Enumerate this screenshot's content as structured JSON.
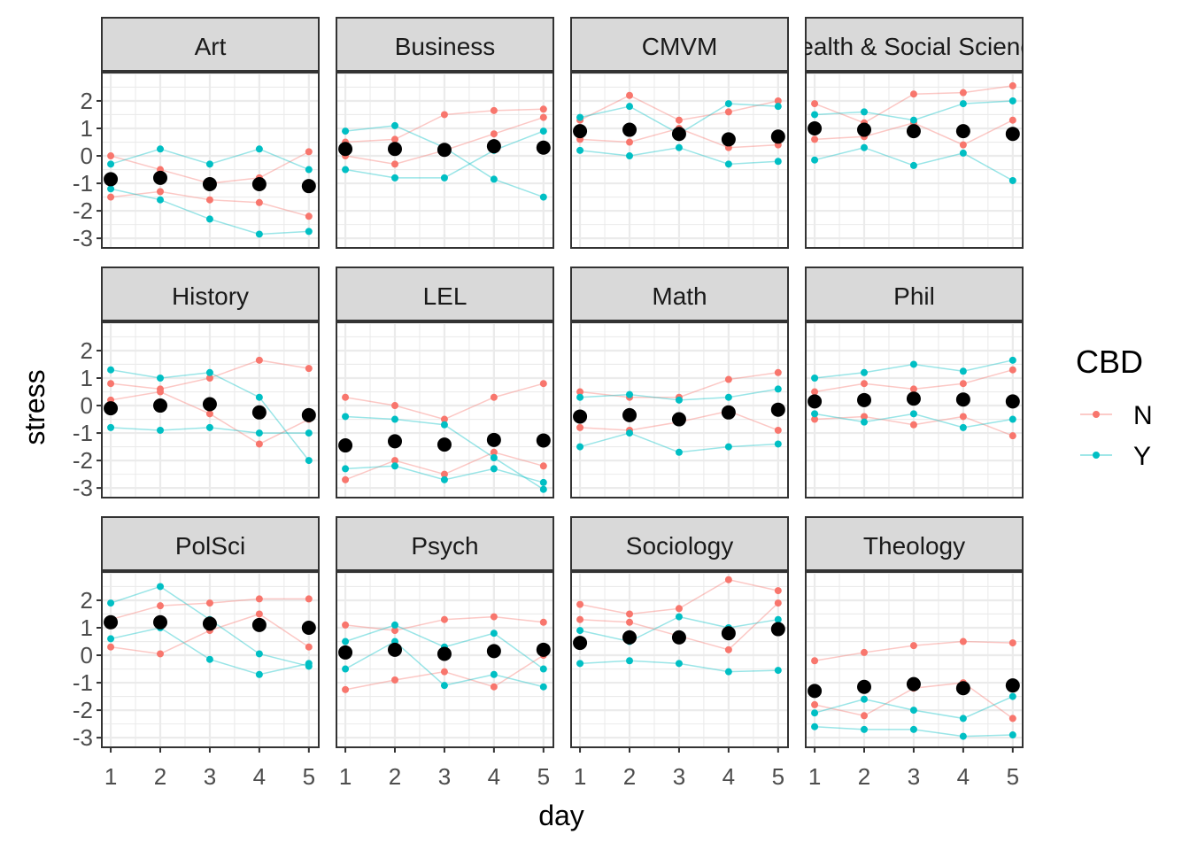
{
  "chart_data": {
    "type": "line",
    "xlabel": "day",
    "ylabel": "stress",
    "x": [
      1,
      2,
      3,
      4,
      5
    ],
    "xticks": [
      "1",
      "2",
      "3",
      "4",
      "5"
    ],
    "yticks": [
      "2",
      "1",
      "0",
      "-1",
      "-2",
      "-3"
    ],
    "ytick_values": [
      2,
      1,
      0,
      -1,
      -2,
      -3
    ],
    "ylim": [
      -3.35,
      3.03
    ],
    "xlim": [
      0.82,
      5.2
    ],
    "grid": true,
    "legend": {
      "title": "CBD",
      "position": "right",
      "entries": [
        {
          "label": "N",
          "color": "#F8766D"
        },
        {
          "label": "Y",
          "color": "#00BFC4"
        }
      ]
    },
    "mean_color": "#000000",
    "facets": [
      {
        "label": "Art",
        "mean": [
          -0.85,
          -0.8,
          -1.03,
          -1.03,
          -1.1
        ],
        "lines": [
          {
            "cbd": "N",
            "y": [
              0,
              -0.5,
              -1,
              -0.8,
              0.15
            ]
          },
          {
            "cbd": "N",
            "y": [
              -1.5,
              -1.3,
              -1.6,
              -1.7,
              -2.2
            ]
          },
          {
            "cbd": "Y",
            "y": [
              -0.3,
              0.25,
              -0.3,
              0.25,
              -0.5
            ]
          },
          {
            "cbd": "Y",
            "y": [
              -1.2,
              -1.6,
              -2.3,
              -2.85,
              -2.75
            ]
          }
        ]
      },
      {
        "label": "Business",
        "mean": [
          0.25,
          0.25,
          0.22,
          0.35,
          0.3
        ],
        "lines": [
          {
            "cbd": "N",
            "y": [
              0.5,
              0.6,
              1.5,
              1.65,
              1.7
            ]
          },
          {
            "cbd": "N",
            "y": [
              0,
              -0.3,
              0.2,
              0.8,
              1.4
            ]
          },
          {
            "cbd": "Y",
            "y": [
              0.9,
              1.1,
              0.3,
              -0.85,
              -1.5
            ]
          },
          {
            "cbd": "Y",
            "y": [
              -0.5,
              -0.8,
              -0.8,
              0.2,
              0.9
            ]
          }
        ]
      },
      {
        "label": "CMVM",
        "mean": [
          0.9,
          0.95,
          0.8,
          0.6,
          0.7
        ],
        "lines": [
          {
            "cbd": "N",
            "y": [
              1.3,
              2.2,
              1.3,
              1.6,
              2.0
            ]
          },
          {
            "cbd": "N",
            "y": [
              0.6,
              0.5,
              1.0,
              0.3,
              0.4
            ]
          },
          {
            "cbd": "Y",
            "y": [
              0.2,
              0,
              0.3,
              -0.3,
              -0.2
            ]
          },
          {
            "cbd": "Y",
            "y": [
              1.4,
              1.8,
              0.8,
              1.9,
              1.8
            ]
          }
        ]
      },
      {
        "label": "Health & Social Science",
        "mean": [
          1.0,
          0.95,
          0.9,
          0.9,
          0.8
        ],
        "lines": [
          {
            "cbd": "N",
            "y": [
              1.9,
              1.2,
              2.25,
              2.3,
              2.55
            ]
          },
          {
            "cbd": "N",
            "y": [
              0.6,
              0.7,
              1.2,
              0.4,
              1.3
            ]
          },
          {
            "cbd": "Y",
            "y": [
              -0.15,
              0.3,
              -0.35,
              0.1,
              -0.9
            ]
          },
          {
            "cbd": "Y",
            "y": [
              1.5,
              1.6,
              1.3,
              1.9,
              2.0
            ]
          }
        ]
      },
      {
        "label": "History",
        "mean": [
          -0.1,
          0.0,
          0.05,
          -0.25,
          -0.35
        ],
        "lines": [
          {
            "cbd": "N",
            "y": [
              0.8,
              0.6,
              1.0,
              1.65,
              1.35
            ]
          },
          {
            "cbd": "N",
            "y": [
              0.2,
              0.5,
              -0.3,
              -1.4,
              -0.5
            ]
          },
          {
            "cbd": "Y",
            "y": [
              1.3,
              1.0,
              1.2,
              0.3,
              -2.0
            ]
          },
          {
            "cbd": "Y",
            "y": [
              -0.8,
              -0.9,
              -0.8,
              -1.0,
              -1.0
            ]
          }
        ]
      },
      {
        "label": "LEL",
        "mean": [
          -1.45,
          -1.3,
          -1.42,
          -1.25,
          -1.27
        ],
        "lines": [
          {
            "cbd": "N",
            "y": [
              0.3,
              0,
              -0.5,
              0.3,
              0.8
            ]
          },
          {
            "cbd": "N",
            "y": [
              -2.7,
              -2.0,
              -2.5,
              -1.7,
              -2.2
            ]
          },
          {
            "cbd": "Y",
            "y": [
              -0.4,
              -0.5,
              -0.7,
              -1.9,
              -3.05
            ]
          },
          {
            "cbd": "Y",
            "y": [
              -2.3,
              -2.2,
              -2.7,
              -2.3,
              -2.8
            ]
          }
        ]
      },
      {
        "label": "Math",
        "mean": [
          -0.4,
          -0.35,
          -0.5,
          -0.25,
          -0.15
        ],
        "lines": [
          {
            "cbd": "N",
            "y": [
              0.5,
              0.3,
              0.3,
              0.95,
              1.2
            ]
          },
          {
            "cbd": "N",
            "y": [
              -0.8,
              -0.9,
              -0.6,
              -0.2,
              -0.9
            ]
          },
          {
            "cbd": "Y",
            "y": [
              -1.5,
              -1.0,
              -1.7,
              -1.5,
              -1.4
            ]
          },
          {
            "cbd": "Y",
            "y": [
              0.3,
              0.4,
              0.2,
              0.3,
              0.6
            ]
          }
        ]
      },
      {
        "label": "Phil",
        "mean": [
          0.15,
          0.2,
          0.25,
          0.22,
          0.15
        ],
        "lines": [
          {
            "cbd": "N",
            "y": [
              -0.5,
              -0.4,
              -0.7,
              -0.4,
              -1.1
            ]
          },
          {
            "cbd": "N",
            "y": [
              0.5,
              0.8,
              0.6,
              0.8,
              1.3
            ]
          },
          {
            "cbd": "Y",
            "y": [
              1.0,
              1.2,
              1.5,
              1.25,
              1.65
            ]
          },
          {
            "cbd": "Y",
            "y": [
              -0.3,
              -0.6,
              -0.3,
              -0.8,
              -0.5
            ]
          }
        ]
      },
      {
        "label": "PolSci",
        "mean": [
          1.2,
          1.2,
          1.15,
          1.1,
          1.0
        ],
        "lines": [
          {
            "cbd": "N",
            "y": [
              1.3,
              1.8,
              1.9,
              2.05,
              2.05
            ]
          },
          {
            "cbd": "N",
            "y": [
              0.3,
              0.05,
              0.9,
              1.5,
              0.3
            ]
          },
          {
            "cbd": "Y",
            "y": [
              1.9,
              2.5,
              1.3,
              0.05,
              -0.4
            ]
          },
          {
            "cbd": "Y",
            "y": [
              0.6,
              1.0,
              -0.15,
              -0.7,
              -0.3
            ]
          }
        ]
      },
      {
        "label": "Psych",
        "mean": [
          0.1,
          0.2,
          0.05,
          0.15,
          0.2
        ],
        "lines": [
          {
            "cbd": "N",
            "y": [
              1.1,
              0.9,
              1.3,
              1.4,
              1.2
            ]
          },
          {
            "cbd": "N",
            "y": [
              -1.25,
              -0.9,
              -0.6,
              -1.15,
              0.0
            ]
          },
          {
            "cbd": "Y",
            "y": [
              -0.5,
              0.5,
              -1.1,
              -0.7,
              -1.15
            ]
          },
          {
            "cbd": "Y",
            "y": [
              0.5,
              1.1,
              0.3,
              0.8,
              -0.5
            ]
          }
        ]
      },
      {
        "label": "Sociology",
        "mean": [
          0.45,
          0.65,
          0.65,
          0.8,
          0.95
        ],
        "lines": [
          {
            "cbd": "N",
            "y": [
              1.85,
              1.5,
              1.7,
              2.75,
              2.35
            ]
          },
          {
            "cbd": "N",
            "y": [
              1.3,
              1.2,
              0.7,
              0.2,
              1.9
            ]
          },
          {
            "cbd": "Y",
            "y": [
              -0.3,
              -0.2,
              -0.3,
              -0.6,
              -0.55
            ]
          },
          {
            "cbd": "Y",
            "y": [
              0.9,
              0.5,
              1.4,
              1.0,
              1.3
            ]
          }
        ]
      },
      {
        "label": "Theology",
        "mean": [
          -1.3,
          -1.15,
          -1.05,
          -1.2,
          -1.1
        ],
        "lines": [
          {
            "cbd": "N",
            "y": [
              -0.2,
              0.1,
              0.35,
              0.5,
              0.45
            ]
          },
          {
            "cbd": "N",
            "y": [
              -1.8,
              -2.2,
              -1.2,
              -1.0,
              -2.3
            ]
          },
          {
            "cbd": "Y",
            "y": [
              -2.6,
              -2.7,
              -2.7,
              -2.95,
              -2.9
            ]
          },
          {
            "cbd": "Y",
            "y": [
              -2.1,
              -1.6,
              -2.0,
              -2.3,
              -1.5
            ]
          }
        ]
      }
    ]
  }
}
